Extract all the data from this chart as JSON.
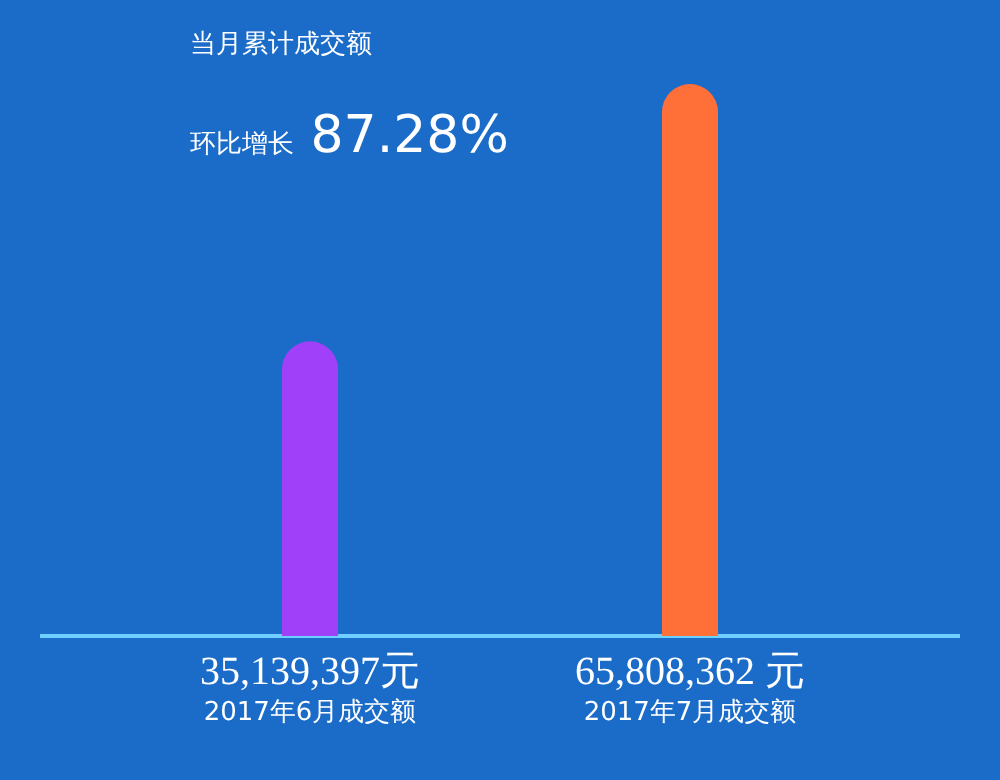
{
  "chart_data": {
    "type": "bar",
    "categories": [
      "2017年6月成交额",
      "2017年7月成交额"
    ],
    "values": [
      35139397,
      65808362
    ],
    "value_labels": [
      "35,139,397元",
      "65,808,362 元"
    ],
    "colors": [
      "#a040f8",
      "#ff7038"
    ],
    "annotations": [
      "当月累计成交额",
      "环比增长 87.28%"
    ]
  }
}
